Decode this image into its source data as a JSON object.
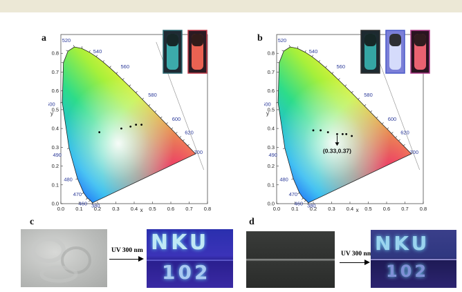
{
  "panels": {
    "a": {
      "letter": "a"
    },
    "b": {
      "letter": "b"
    },
    "c": {
      "letter": "c",
      "uv_label": "UV 300 nm",
      "text_row1": "NKU",
      "text_row2": "102"
    },
    "d": {
      "letter": "d",
      "uv_label": "UV 300 nm",
      "text_row1": "NKU",
      "text_row2": "102"
    }
  },
  "chart_data": [
    {
      "type": "scatter",
      "title": "",
      "xlabel": "x",
      "ylabel": "y",
      "xlim": [
        0.0,
        0.8
      ],
      "ylim": [
        0.0,
        0.9
      ],
      "xticks": [
        "0.0",
        "0.1",
        "0.2",
        "0.3",
        "0.4",
        "0.5",
        "0.6",
        "0.7",
        "0.8"
      ],
      "yticks": [
        "0.0",
        "0.1",
        "0.2",
        "0.3",
        "0.4",
        "0.5",
        "0.6",
        "0.7",
        "0.8"
      ],
      "wavelength_labels": [
        "380",
        "460",
        "470",
        "480",
        "490",
        "500",
        "520",
        "540",
        "560",
        "580",
        "600",
        "620",
        "700"
      ],
      "points": [
        {
          "x": 0.21,
          "y": 0.38
        },
        {
          "x": 0.33,
          "y": 0.4
        },
        {
          "x": 0.38,
          "y": 0.41
        },
        {
          "x": 0.41,
          "y": 0.42
        },
        {
          "x": 0.44,
          "y": 0.42
        }
      ],
      "annotation": ""
    },
    {
      "type": "scatter",
      "title": "",
      "xlabel": "x",
      "ylabel": "y",
      "xlim": [
        0.0,
        0.8
      ],
      "ylim": [
        0.0,
        0.9
      ],
      "xticks": [
        "0.0",
        "0.1",
        "0.2",
        "0.3",
        "0.4",
        "0.5",
        "0.6",
        "0.7",
        "0.8"
      ],
      "yticks": [
        "0.0",
        "0.1",
        "0.2",
        "0.3",
        "0.4",
        "0.5",
        "0.6",
        "0.7",
        "0.8"
      ],
      "wavelength_labels": [
        "380",
        "460",
        "470",
        "480",
        "490",
        "500",
        "520",
        "540",
        "560",
        "580",
        "600",
        "620",
        "700"
      ],
      "points": [
        {
          "x": 0.2,
          "y": 0.39
        },
        {
          "x": 0.24,
          "y": 0.39
        },
        {
          "x": 0.28,
          "y": 0.38
        },
        {
          "x": 0.33,
          "y": 0.37
        },
        {
          "x": 0.36,
          "y": 0.37
        },
        {
          "x": 0.38,
          "y": 0.37
        },
        {
          "x": 0.41,
          "y": 0.36
        }
      ],
      "annotation": "(0.33,0.37)"
    }
  ]
}
